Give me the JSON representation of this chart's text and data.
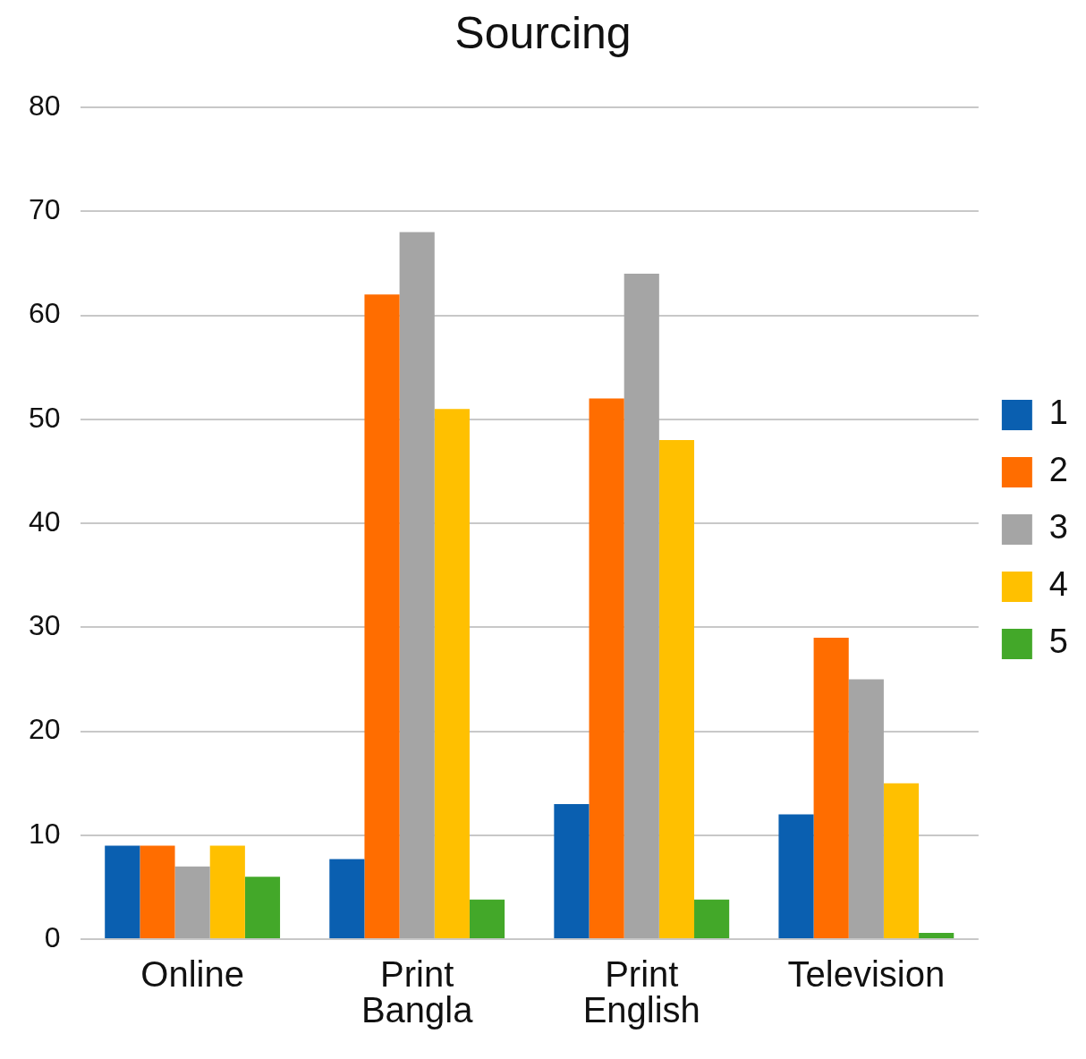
{
  "chart_data": {
    "type": "bar",
    "title": "Sourcing",
    "categories": [
      "Online",
      "Print Bangla",
      "Print English",
      "Television"
    ],
    "series": [
      {
        "name": "1",
        "color": "#0a5fb0",
        "values": [
          9,
          7.7,
          13,
          12
        ]
      },
      {
        "name": "2",
        "color": "#ff6d00",
        "values": [
          9,
          62,
          52,
          29
        ]
      },
      {
        "name": "3",
        "color": "#a5a5a5",
        "values": [
          7,
          68,
          64,
          25
        ]
      },
      {
        "name": "4",
        "color": "#ffc000",
        "values": [
          9,
          51,
          48,
          15
        ]
      },
      {
        "name": "5",
        "color": "#43a829",
        "values": [
          6,
          3.8,
          3.8,
          0.6
        ]
      }
    ],
    "ylim": [
      0,
      80
    ],
    "yticks": [
      0,
      10,
      20,
      30,
      40,
      50,
      60,
      70,
      80
    ],
    "grid": "y",
    "legend": "right"
  }
}
